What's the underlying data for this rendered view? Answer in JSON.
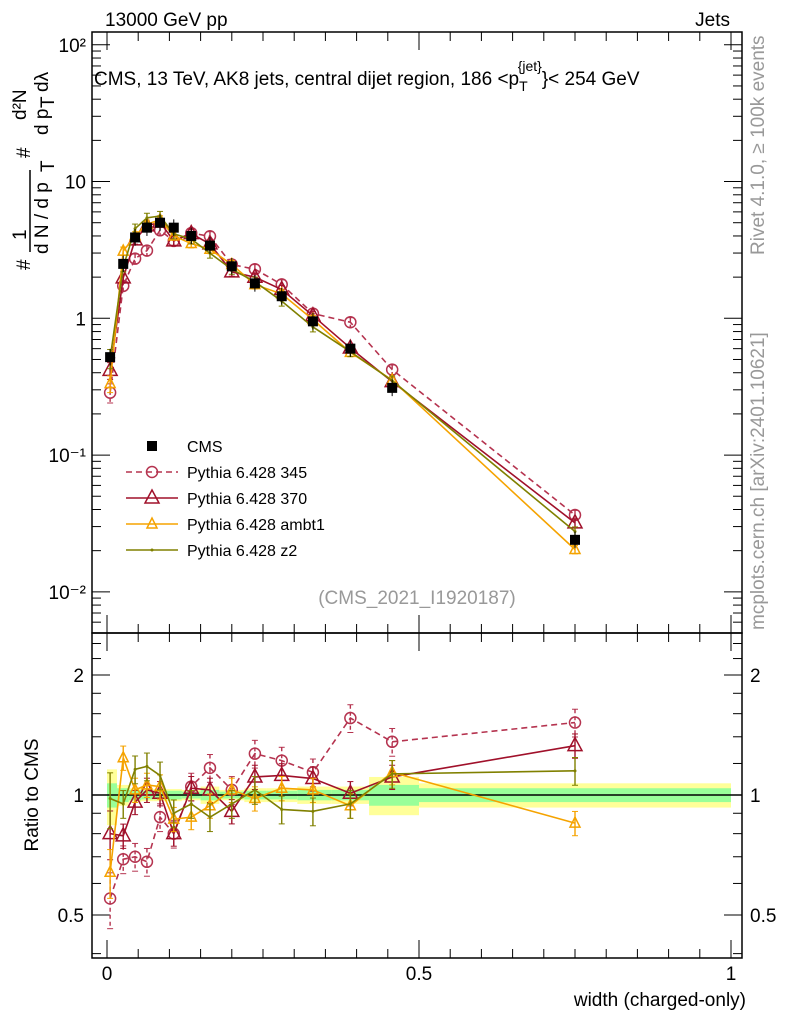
{
  "header": {
    "left": "13000 GeV pp",
    "right": "Jets"
  },
  "side_labels": {
    "rivet": "Rivet 4.1.0, ≥ 100k events",
    "mcplots": "mcplots.cern.ch [arXiv:2401.10621]"
  },
  "chart_data": [
    {
      "type": "line",
      "title": "CMS, 13 TeV, AK8 jets, central dijet region, 186 < p_T^{jet} < 254 GeV",
      "title_parts": {
        "pre": "CMS, 13 TeV, AK8 jets, central dijet region, 186 <p",
        "sub": "T",
        "sup": "{jet}",
        "post": "}< 254 GeV"
      },
      "ylabel": "1/(dN/dp_T) d²N/(dp_T dλ)",
      "ylabel_parts": {
        "a": "#",
        "b": "1",
        "c": "d N / d p",
        "d": "T",
        "e": "#",
        "f": "d²N",
        "g": "d p",
        "h": "T",
        "i": "dλ"
      },
      "yscale": "log",
      "ylim": [
        0.005,
        124
      ],
      "yticks": [
        {
          "v": 0.01,
          "label": "10⁻²"
        },
        {
          "v": 0.1,
          "label": "10⁻¹"
        },
        {
          "v": 1,
          "label": "1"
        },
        {
          "v": 10,
          "label": "10"
        },
        {
          "v": 100,
          "label": "10²"
        }
      ],
      "analysis_label": "(CMS_2021_I1920187)",
      "legend_position": "lower-left",
      "x": [
        0.005,
        0.026,
        0.045,
        0.064,
        0.085,
        0.107,
        0.135,
        0.165,
        0.2,
        0.237,
        0.28,
        0.33,
        0.39,
        0.457,
        0.75
      ],
      "data": {
        "name": "CMS",
        "values": [
          0.52,
          2.5,
          3.9,
          4.6,
          5.0,
          4.6,
          4.0,
          3.4,
          2.4,
          1.8,
          1.45,
          0.95,
          0.6,
          0.31,
          0.024
        ]
      },
      "series": [
        {
          "name": "Pythia 6.428 345",
          "color": "#b5334f",
          "marker": "circle",
          "dashed": true,
          "ratio": [
            0.55,
            0.69,
            0.7,
            0.68,
            0.88,
            0.8,
            1.05,
            1.17,
            1.03,
            1.27,
            1.22,
            1.14,
            1.56,
            1.36,
            1.52
          ],
          "rel_err": 0.08
        },
        {
          "name": "Pythia 6.428 370",
          "color": "#a0102a",
          "marker": "triangle",
          "dashed": false,
          "ratio": [
            0.8,
            0.79,
            0.96,
            1.03,
            1.01,
            0.8,
            1.04,
            1.03,
            0.91,
            1.11,
            1.12,
            1.1,
            1.01,
            1.11,
            1.33
          ],
          "rel_err": 0.07
        },
        {
          "name": "Pythia 6.428 ambt1",
          "color": "#f5a300",
          "marker": "triangle-small",
          "dashed": false,
          "ratio": [
            0.64,
            1.24,
            1.03,
            1.06,
            1.05,
            0.87,
            0.88,
            0.94,
            1.03,
            0.98,
            1.04,
            1.03,
            0.94,
            1.14,
            0.85
          ],
          "rel_err": 0.07
        },
        {
          "name": "Pythia 6.428 z2",
          "color": "#808000",
          "marker": "dot",
          "dashed": false,
          "ratio": [
            0.98,
            0.95,
            1.16,
            1.18,
            1.12,
            0.9,
            0.95,
            0.88,
            0.95,
            1.03,
            0.92,
            0.91,
            0.95,
            1.13,
            1.15
          ],
          "rel_err": 0.08
        }
      ]
    },
    {
      "type": "line",
      "ylabel": "Ratio to CMS",
      "xlabel": "width (charged-only)",
      "yscale": "log",
      "ylim": [
        0.39,
        2.55
      ],
      "yticks": [
        {
          "v": 0.5,
          "label": "0.5"
        },
        {
          "v": 1,
          "label": "1"
        },
        {
          "v": 2,
          "label": "2"
        }
      ],
      "xlim": [
        -0.01,
        1.02
      ],
      "xticks": [
        {
          "v": 0,
          "label": "0"
        },
        {
          "v": 0.5,
          "label": "0.5"
        },
        {
          "v": 1,
          "label": "1"
        }
      ],
      "band_edges": [
        0,
        0.016,
        0.035,
        0.055,
        0.075,
        0.095,
        0.12,
        0.15,
        0.18,
        0.22,
        0.255,
        0.305,
        0.36,
        0.42,
        0.5,
        1.0
      ],
      "band_green": [
        0.07,
        0.04,
        0.03,
        0.025,
        0.025,
        0.025,
        0.02,
        0.03,
        0.02,
        0.025,
        0.025,
        0.03,
        0.03,
        0.06,
        0.04
      ],
      "band_yellow": [
        0.16,
        0.06,
        0.04,
        0.035,
        0.035,
        0.035,
        0.03,
        0.05,
        0.03,
        0.04,
        0.04,
        0.05,
        0.05,
        0.11,
        0.07
      ]
    }
  ]
}
